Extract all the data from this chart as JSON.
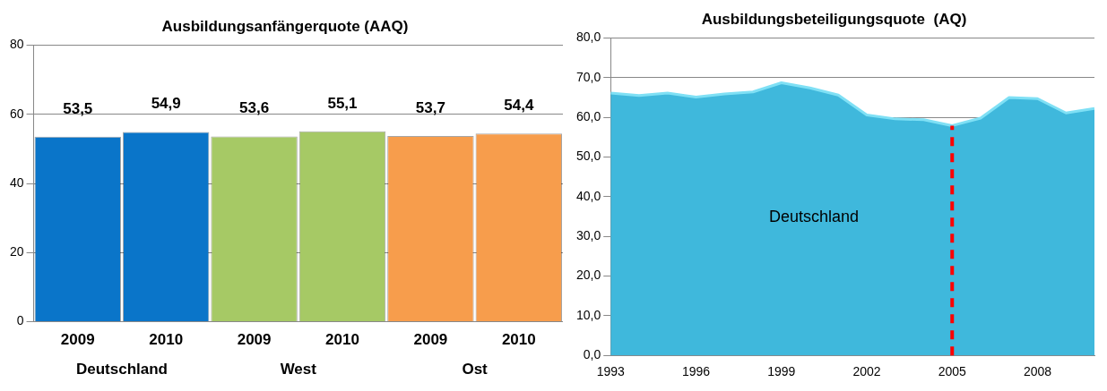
{
  "chart_data": [
    {
      "type": "bar",
      "title": "Ausbildungsanfängerquote (AAQ)",
      "categories": [
        "2009",
        "2010",
        "2009",
        "2010",
        "2009",
        "2010"
      ],
      "values": [
        53.5,
        54.9,
        53.6,
        55.1,
        53.7,
        54.4
      ],
      "value_labels": [
        "53,5",
        "54,9",
        "53,6",
        "55,1",
        "53,7",
        "54,4"
      ],
      "colors": [
        "#0a75c9",
        "#0a75c9",
        "#a6c965",
        "#a6c965",
        "#f79d4c",
        "#f79d4c"
      ],
      "annotations": [
        "Deutschland",
        "West",
        "Ost"
      ],
      "ylim": [
        0,
        80
      ],
      "yticks": [
        0,
        20,
        40,
        60,
        80
      ],
      "grid": "y",
      "legend": false
    },
    {
      "type": "area",
      "title": "Ausbildungsbeteiligungsquote  (AQ)",
      "x": [
        1993,
        1994,
        1995,
        1996,
        1997,
        1998,
        1999,
        2000,
        2001,
        2002,
        2003,
        2004,
        2005,
        2006,
        2007,
        2008,
        2009,
        2010
      ],
      "series": [
        {
          "name": "Deutschland",
          "color": "#3fb8dc",
          "values": [
            66.1,
            65.5,
            66.1,
            65.1,
            65.9,
            66.4,
            68.7,
            67.4,
            65.6,
            60.6,
            59.6,
            59.4,
            57.9,
            59.8,
            65.0,
            64.7,
            61.1,
            62.2
          ]
        }
      ],
      "xlim": [
        1993,
        2010
      ],
      "xticks": [
        1993,
        1996,
        1999,
        2002,
        2005,
        2008
      ],
      "ylim": [
        0,
        80
      ],
      "yticks": [
        {
          "value": 0,
          "label": "0,0"
        },
        {
          "value": 10,
          "label": "10,0"
        },
        {
          "value": 20,
          "label": "20,0"
        },
        {
          "value": 30,
          "label": "30,0"
        },
        {
          "value": 40,
          "label": "40,0"
        },
        {
          "value": 50,
          "label": "50,0"
        },
        {
          "value": 60,
          "label": "60,0"
        },
        {
          "value": 70,
          "label": "70,0"
        },
        {
          "value": 80,
          "label": "80,0"
        }
      ],
      "ref_lines": [
        {
          "axis": "x",
          "value": 2005,
          "color": "#ff0000",
          "line_style": "dashed"
        }
      ],
      "grid": "y",
      "legend": false
    }
  ]
}
